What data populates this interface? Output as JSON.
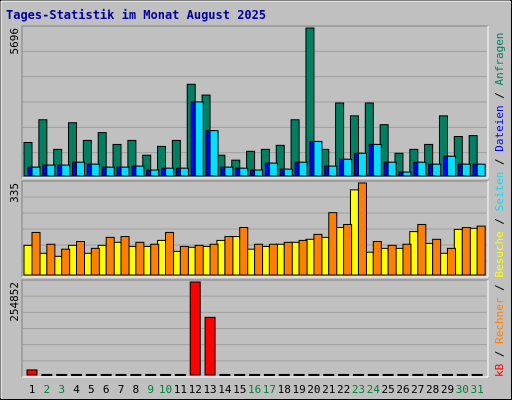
{
  "title": "Tages-Statistik im Monat August 2025",
  "legend_separator": " / ",
  "chart_data": [
    {
      "type": "bar",
      "ylim": [
        0,
        5696
      ],
      "series": [
        {
          "name": "Seiten",
          "color": "#00e0ff",
          "values": [
            340,
            420,
            420,
            530,
            455,
            340,
            340,
            380,
            230,
            300,
            300,
            2850,
            1745,
            340,
            300,
            230,
            495,
            265,
            530,
            1330,
            380,
            645,
            875,
            1215,
            530,
            150,
            530,
            455,
            760,
            455,
            455
          ]
        },
        {
          "name": "Dateien",
          "color": "#0000ff",
          "values": [
            340,
            420,
            420,
            530,
            455,
            340,
            340,
            380,
            230,
            300,
            300,
            2850,
            1745,
            340,
            300,
            230,
            495,
            265,
            530,
            1330,
            380,
            645,
            875,
            1215,
            530,
            150,
            530,
            455,
            760,
            455,
            455
          ]
        },
        {
          "name": "Anfragen",
          "color": "#008060",
          "values": [
            1290,
            2165,
            1025,
            2050,
            1370,
            1670,
            1215,
            1370,
            800,
            1140,
            1370,
            3530,
            3115,
            800,
            610,
            950,
            1025,
            1180,
            2165,
            5696,
            1025,
            2810,
            2315,
            2810,
            1975,
            875,
            1025,
            1215,
            2315,
            1520,
            1555
          ]
        }
      ]
    },
    {
      "type": "bar",
      "ylim": [
        0,
        335
      ],
      "series": [
        {
          "name": "Rechner",
          "color": "#ff8000",
          "values": [
            155,
            112,
            94,
            122,
            97,
            137,
            140,
            119,
            112,
            155,
            104,
            108,
            112,
            140,
            173,
            112,
            112,
            119,
            126,
            148,
            227,
            184,
            335,
            122,
            108,
            112,
            184,
            130,
            97,
            173,
            178
          ]
        },
        {
          "name": "Besuche",
          "color": "#ffff00",
          "values": [
            108,
            79,
            68,
            108,
            79,
            108,
            119,
            104,
            104,
            126,
            86,
            101,
            104,
            126,
            140,
            94,
            104,
            112,
            119,
            130,
            137,
            173,
            310,
            83,
            97,
            97,
            158,
            115,
            79,
            166,
            170
          ]
        }
      ]
    },
    {
      "type": "bar",
      "ylim": [
        0,
        254852
      ],
      "categories": [
        "1",
        "2",
        "3",
        "4",
        "5",
        "6",
        "7",
        "8",
        "9",
        "10",
        "11",
        "12",
        "13",
        "14",
        "15",
        "16",
        "17",
        "18",
        "19",
        "20",
        "21",
        "22",
        "23",
        "24",
        "25",
        "26",
        "27",
        "28",
        "29",
        "30",
        "31"
      ],
      "category_colors": [
        "#000000",
        "#008040",
        "#008040",
        "#000000",
        "#000000",
        "#000000",
        "#000000",
        "#000000",
        "#008040",
        "#008040",
        "#000000",
        "#000000",
        "#000000",
        "#000000",
        "#000000",
        "#008040",
        "#008040",
        "#000000",
        "#000000",
        "#000000",
        "#000000",
        "#000000",
        "#008040",
        "#008040",
        "#000000",
        "#000000",
        "#000000",
        "#000000",
        "#000000",
        "#008040",
        "#008040"
      ],
      "series": [
        {
          "name": "kB",
          "color": "#ff0000",
          "values": [
            14000,
            1500,
            1500,
            1500,
            1500,
            1500,
            1500,
            1500,
            1500,
            1500,
            1500,
            254852,
            158000,
            1500,
            1500,
            1500,
            1500,
            1500,
            1500,
            1500,
            1500,
            1500,
            1500,
            1500,
            1500,
            1500,
            1500,
            1500,
            1500,
            1500,
            1500
          ]
        }
      ]
    }
  ]
}
